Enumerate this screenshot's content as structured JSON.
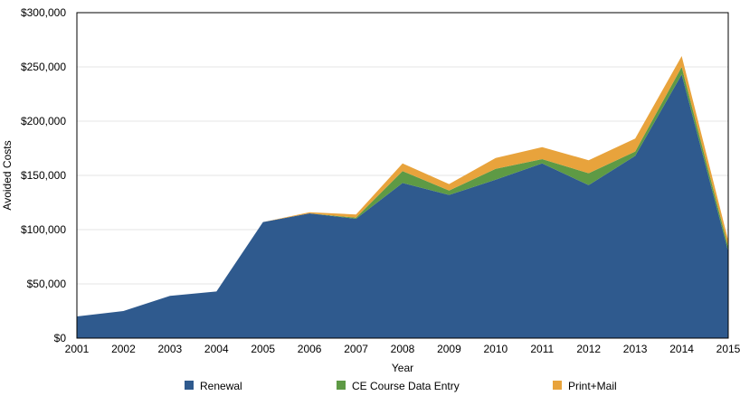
{
  "chart_data": {
    "type": "area",
    "stacked": true,
    "title": "",
    "xlabel": "Year",
    "ylabel": "Avoided Costs",
    "x": [
      "2001",
      "2002",
      "2003",
      "2004",
      "2005",
      "2006",
      "2007",
      "2008",
      "2009",
      "2010",
      "2011",
      "2012",
      "2013",
      "2014",
      "2015"
    ],
    "ylim": [
      0,
      300000
    ],
    "y_ticks": [
      0,
      50000,
      100000,
      150000,
      200000,
      250000,
      300000
    ],
    "y_tick_labels": [
      "$0",
      "$50,000",
      "$100,000",
      "$150,000",
      "$200,000",
      "$250,000",
      "$300,000"
    ],
    "grid": true,
    "legend_position": "bottom",
    "series": [
      {
        "name": "Renewal",
        "color": "#2f5a8e",
        "values": [
          20000,
          25000,
          39000,
          43000,
          107000,
          115000,
          110000,
          143000,
          132000,
          146000,
          161000,
          141000,
          168000,
          243000,
          80000
        ]
      },
      {
        "name": "CE Course Data Entry",
        "color": "#5e9a45",
        "values": [
          0,
          0,
          0,
          0,
          0,
          0,
          1000,
          11000,
          4000,
          10000,
          4000,
          11000,
          4000,
          7000,
          4000
        ]
      },
      {
        "name": "Print+Mail",
        "color": "#e8a33c",
        "values": [
          0,
          0,
          0,
          0,
          0,
          1000,
          3000,
          7000,
          6000,
          10000,
          11000,
          12000,
          12000,
          10000,
          6000
        ]
      }
    ]
  }
}
